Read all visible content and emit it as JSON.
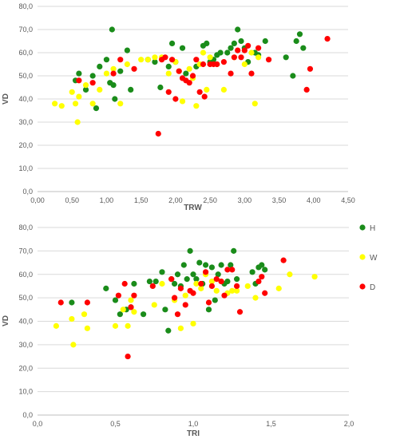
{
  "chart_data": [
    {
      "type": "scatter",
      "title": "",
      "xlabel": "TRW",
      "ylabel": "VD",
      "xlim": [
        0,
        4.5
      ],
      "ylim": [
        0,
        80
      ],
      "xticks": [
        "0,00",
        "0,50",
        "1,00",
        "1,50",
        "2,00",
        "2,50",
        "3,00",
        "3,50",
        "4,00",
        "4,50"
      ],
      "yticks": [
        "0,0",
        "10,0",
        "20,0",
        "30,0",
        "40,0",
        "50,0",
        "60,0",
        "70,0",
        "80,0"
      ],
      "grid": "horizontal",
      "series": [
        {
          "name": "H",
          "color": "#1a8c1a",
          "points": [
            [
              0.55,
              48
            ],
            [
              0.6,
              51
            ],
            [
              0.7,
              44
            ],
            [
              0.8,
              50
            ],
            [
              0.85,
              36
            ],
            [
              0.9,
              54
            ],
            [
              1.0,
              57
            ],
            [
              1.05,
              47
            ],
            [
              1.08,
              70
            ],
            [
              1.1,
              46
            ],
            [
              1.12,
              40
            ],
            [
              1.2,
              52
            ],
            [
              1.3,
              61
            ],
            [
              1.35,
              44
            ],
            [
              1.6,
              57
            ],
            [
              1.7,
              56
            ],
            [
              1.78,
              45
            ],
            [
              1.9,
              54
            ],
            [
              1.95,
              64
            ],
            [
              2.0,
              56
            ],
            [
              2.1,
              62
            ],
            [
              2.15,
              51
            ],
            [
              2.3,
              54
            ],
            [
              2.4,
              63
            ],
            [
              2.45,
              64
            ],
            [
              2.5,
              56
            ],
            [
              2.55,
              57
            ],
            [
              2.6,
              59
            ],
            [
              2.65,
              60
            ],
            [
              2.75,
              60
            ],
            [
              2.8,
              62
            ],
            [
              2.85,
              64
            ],
            [
              2.9,
              70
            ],
            [
              2.95,
              65
            ],
            [
              3.0,
              62
            ],
            [
              3.05,
              56
            ],
            [
              3.15,
              60
            ],
            [
              3.2,
              59
            ],
            [
              3.3,
              65
            ],
            [
              3.6,
              58
            ],
            [
              3.7,
              50
            ],
            [
              3.75,
              65
            ],
            [
              3.8,
              68
            ],
            [
              3.85,
              62
            ]
          ]
        },
        {
          "name": "W",
          "color": "#ffff00",
          "points": [
            [
              0.25,
              38
            ],
            [
              0.35,
              37
            ],
            [
              0.5,
              43
            ],
            [
              0.55,
              38
            ],
            [
              0.58,
              30
            ],
            [
              0.6,
              41
            ],
            [
              0.7,
              46
            ],
            [
              0.8,
              38
            ],
            [
              0.9,
              44
            ],
            [
              1.0,
              51
            ],
            [
              1.1,
              53
            ],
            [
              1.2,
              38
            ],
            [
              1.3,
              55
            ],
            [
              1.5,
              57
            ],
            [
              1.6,
              57
            ],
            [
              1.7,
              58
            ],
            [
              1.8,
              58
            ],
            [
              1.9,
              51
            ],
            [
              2.0,
              56
            ],
            [
              2.05,
              52
            ],
            [
              2.1,
              39
            ],
            [
              2.2,
              53
            ],
            [
              2.25,
              49
            ],
            [
              2.3,
              37
            ],
            [
              2.35,
              55
            ],
            [
              2.4,
              60
            ],
            [
              2.45,
              44
            ],
            [
              2.5,
              58
            ],
            [
              2.6,
              55
            ],
            [
              2.7,
              44
            ],
            [
              2.85,
              58
            ],
            [
              3.0,
              55
            ],
            [
              3.1,
              60
            ],
            [
              3.15,
              38
            ],
            [
              3.2,
              58
            ]
          ]
        },
        {
          "name": "D",
          "color": "#ff0000",
          "points": [
            [
              0.6,
              48
            ],
            [
              0.8,
              47
            ],
            [
              1.1,
              51
            ],
            [
              1.2,
              57
            ],
            [
              1.4,
              53
            ],
            [
              1.75,
              25
            ],
            [
              1.8,
              57
            ],
            [
              1.85,
              58
            ],
            [
              1.9,
              43
            ],
            [
              1.95,
              57
            ],
            [
              2.0,
              40
            ],
            [
              2.05,
              52
            ],
            [
              2.1,
              49
            ],
            [
              2.15,
              48
            ],
            [
              2.2,
              47
            ],
            [
              2.25,
              50
            ],
            [
              2.3,
              57
            ],
            [
              2.35,
              43
            ],
            [
              2.4,
              55
            ],
            [
              2.42,
              41
            ],
            [
              2.5,
              55
            ],
            [
              2.55,
              55
            ],
            [
              2.6,
              55
            ],
            [
              2.7,
              56
            ],
            [
              2.8,
              51
            ],
            [
              2.85,
              58
            ],
            [
              2.9,
              61
            ],
            [
              2.95,
              58
            ],
            [
              3.0,
              61
            ],
            [
              3.05,
              63
            ],
            [
              3.1,
              51
            ],
            [
              3.2,
              62
            ],
            [
              3.35,
              57
            ],
            [
              3.9,
              44
            ],
            [
              3.95,
              53
            ],
            [
              4.2,
              66
            ]
          ]
        }
      ]
    },
    {
      "type": "scatter",
      "title": "",
      "xlabel": "TRI",
      "ylabel": "VD",
      "xlim": [
        0,
        2
      ],
      "ylim": [
        0,
        80
      ],
      "xticks": [
        "0,0",
        "0,5",
        "1,0",
        "1,5",
        "2,0"
      ],
      "yticks": [
        "0,0",
        "10,0",
        "20,0",
        "30,0",
        "40,0",
        "50,0",
        "60,0",
        "70,0",
        "80,0"
      ],
      "grid": "horizontal",
      "series": [
        {
          "name": "H",
          "color": "#1a8c1a",
          "points": [
            [
              0.22,
              48
            ],
            [
              0.44,
              54
            ],
            [
              0.5,
              49
            ],
            [
              0.53,
              43
            ],
            [
              0.57,
              45
            ],
            [
              0.6,
              46
            ],
            [
              0.62,
              56
            ],
            [
              0.68,
              43
            ],
            [
              0.72,
              57
            ],
            [
              0.76,
              57
            ],
            [
              0.8,
              61
            ],
            [
              0.82,
              45
            ],
            [
              0.84,
              36
            ],
            [
              0.86,
              58
            ],
            [
              0.88,
              56
            ],
            [
              0.9,
              60
            ],
            [
              0.92,
              55
            ],
            [
              0.94,
              64
            ],
            [
              0.96,
              58
            ],
            [
              0.98,
              70
            ],
            [
              1.0,
              60
            ],
            [
              1.02,
              58
            ],
            [
              1.04,
              65
            ],
            [
              1.06,
              56
            ],
            [
              1.08,
              64
            ],
            [
              1.1,
              45
            ],
            [
              1.12,
              63
            ],
            [
              1.14,
              49
            ],
            [
              1.16,
              60
            ],
            [
              1.18,
              64
            ],
            [
              1.2,
              56
            ],
            [
              1.22,
              57
            ],
            [
              1.24,
              64
            ],
            [
              1.26,
              70
            ],
            [
              1.28,
              58
            ],
            [
              1.38,
              61
            ],
            [
              1.4,
              56
            ],
            [
              1.42,
              63
            ],
            [
              1.44,
              64
            ],
            [
              1.46,
              62
            ]
          ]
        },
        {
          "name": "W",
          "color": "#ffff00",
          "points": [
            [
              0.12,
              38
            ],
            [
              0.22,
              41
            ],
            [
              0.23,
              30
            ],
            [
              0.3,
              43
            ],
            [
              0.32,
              37
            ],
            [
              0.5,
              38
            ],
            [
              0.55,
              45
            ],
            [
              0.58,
              38
            ],
            [
              0.6,
              49
            ],
            [
              0.62,
              44
            ],
            [
              0.75,
              47
            ],
            [
              0.8,
              56
            ],
            [
              0.88,
              49
            ],
            [
              0.92,
              37
            ],
            [
              0.95,
              51
            ],
            [
              1.0,
              39
            ],
            [
              1.02,
              56
            ],
            [
              1.05,
              54
            ],
            [
              1.08,
              60
            ],
            [
              1.12,
              57
            ],
            [
              1.15,
              53
            ],
            [
              1.18,
              57
            ],
            [
              1.22,
              52
            ],
            [
              1.25,
              53
            ],
            [
              1.28,
              53
            ],
            [
              1.35,
              55
            ],
            [
              1.4,
              50
            ],
            [
              1.55,
              54
            ],
            [
              1.62,
              60
            ],
            [
              1.78,
              59
            ]
          ]
        },
        {
          "name": "D",
          "color": "#ff0000",
          "points": [
            [
              0.15,
              48
            ],
            [
              0.32,
              48
            ],
            [
              0.52,
              51
            ],
            [
              0.56,
              56
            ],
            [
              0.58,
              25
            ],
            [
              0.6,
              46
            ],
            [
              0.62,
              51
            ],
            [
              0.74,
              55
            ],
            [
              0.86,
              58
            ],
            [
              0.88,
              50
            ],
            [
              0.9,
              43
            ],
            [
              0.92,
              54
            ],
            [
              0.95,
              47
            ],
            [
              0.98,
              53
            ],
            [
              1.0,
              52
            ],
            [
              1.05,
              56
            ],
            [
              1.08,
              61
            ],
            [
              1.1,
              48
            ],
            [
              1.12,
              55
            ],
            [
              1.15,
              58
            ],
            [
              1.18,
              57
            ],
            [
              1.2,
              51
            ],
            [
              1.22,
              62
            ],
            [
              1.25,
              62
            ],
            [
              1.28,
              55
            ],
            [
              1.3,
              44
            ],
            [
              1.42,
              57
            ],
            [
              1.44,
              59
            ],
            [
              1.46,
              52
            ],
            [
              1.58,
              66
            ]
          ]
        }
      ]
    }
  ]
}
